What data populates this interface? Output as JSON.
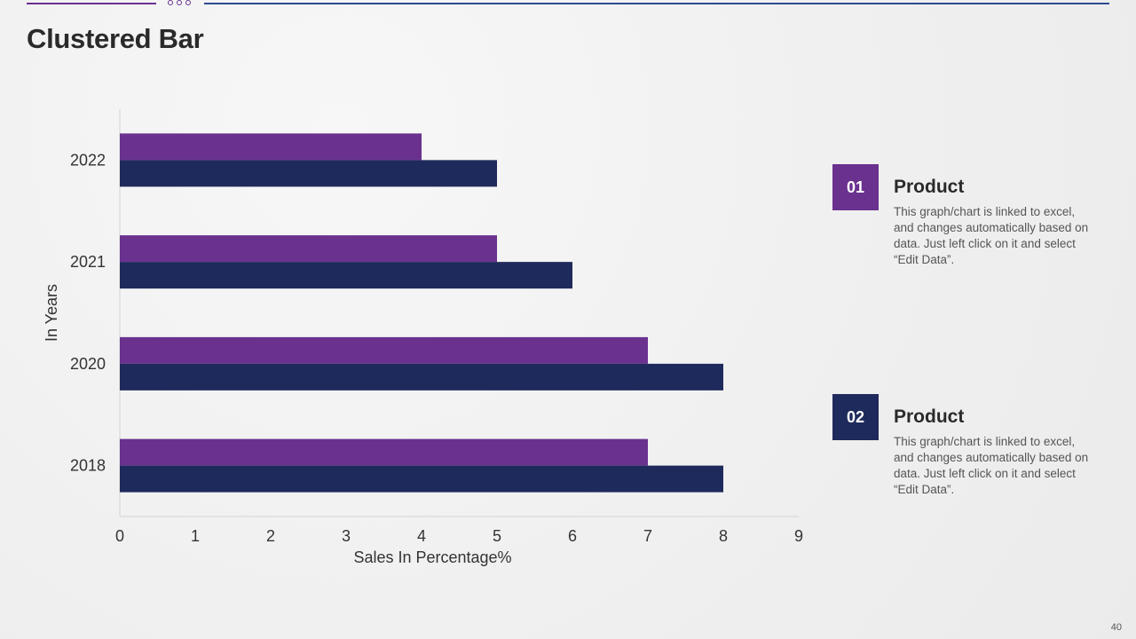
{
  "slide": {
    "title": "Clustered Bar",
    "page_number": "40"
  },
  "colors": {
    "purple": "#6a318f",
    "navy": "#1f2a5c",
    "top_line_left": "#6a318f",
    "top_line_right": "#2e4a8f"
  },
  "legend": [
    {
      "number": "01",
      "title": "Product",
      "description": "This graph/chart is linked to excel, and changes automatically based on data. Just left click on it and select “Edit Data”.",
      "color": "#6a318f"
    },
    {
      "number": "02",
      "title": "Product",
      "description": "This graph/chart is linked to excel, and changes automatically based on data. Just left click on it and select “Edit Data”.",
      "color": "#1f2a5c"
    }
  ],
  "chart_data": {
    "type": "bar",
    "orientation": "horizontal",
    "categories": [
      "2022",
      "2021",
      "2020",
      "2018"
    ],
    "series": [
      {
        "values": [
          4,
          5,
          7,
          7
        ],
        "color": "#6a318f"
      },
      {
        "values": [
          5,
          6,
          8,
          8
        ],
        "color": "#1f2a5c"
      }
    ],
    "xlabel": "Sales In Percentage%",
    "ylabel": "In Years",
    "xlim": [
      0,
      9
    ],
    "x_ticks": [
      "0",
      "1",
      "2",
      "3",
      "4",
      "5",
      "6",
      "7",
      "8",
      "9"
    ],
    "grid": false,
    "legend_position": "right"
  }
}
